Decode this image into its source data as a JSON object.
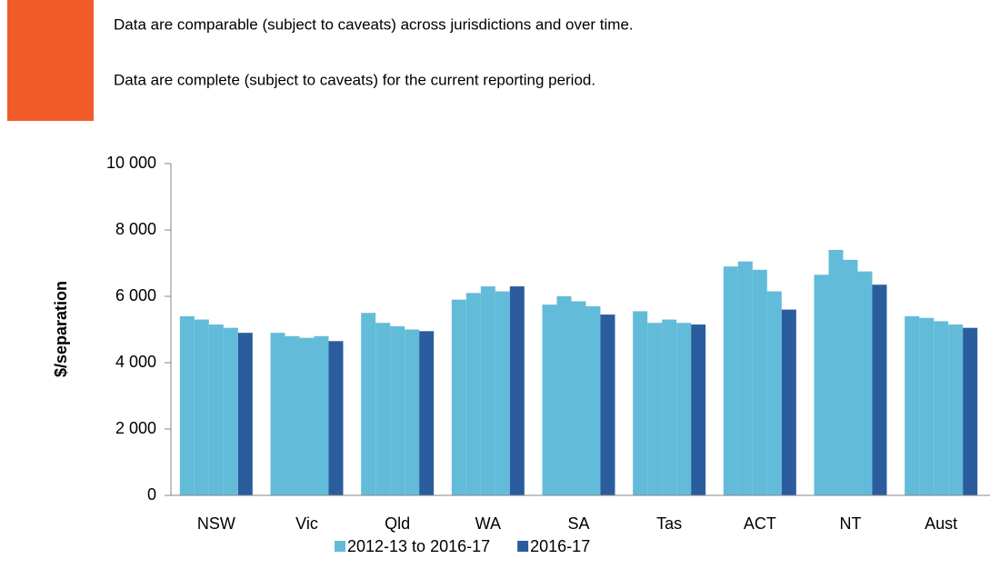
{
  "notes": [
    "Data are comparable (subject to caveats) across jurisdictions and over time.",
    "Data are complete (subject to caveats) for the current reporting period."
  ],
  "chart_data": {
    "type": "grouped_bar",
    "y_label": "$/separation",
    "categories": [
      "NSW",
      "Vic",
      "Qld",
      "WA",
      "SA",
      "Tas",
      "ACT",
      "NT",
      "Aust"
    ],
    "series": [
      {
        "name": "2012-13 to 2016-17",
        "color": "#62bcd9",
        "values": [
          [
            5400,
            5300,
            5150,
            5050
          ],
          [
            4900,
            4800,
            4750,
            4800
          ],
          [
            5500,
            5200,
            5100,
            5000
          ],
          [
            5900,
            6100,
            6300,
            6150
          ],
          [
            5750,
            6000,
            5850,
            5700
          ],
          [
            5550,
            5200,
            5300,
            5200
          ],
          [
            6900,
            7050,
            6800,
            6150
          ],
          [
            6650,
            7400,
            7100,
            6750
          ],
          [
            5400,
            5350,
            5250,
            5150
          ]
        ]
      },
      {
        "name": "2016-17",
        "color": "#2b5d9e",
        "values": [
          4900,
          4650,
          4950,
          6300,
          5450,
          5150,
          5600,
          6350,
          5050
        ]
      }
    ],
    "ylim": [
      0,
      10000
    ],
    "yticks": [
      0,
      {
        "value": 2000,
        "label": "2 000"
      },
      {
        "value": 4000,
        "label": "4 000"
      },
      {
        "value": 6000,
        "label": "6 000"
      },
      {
        "value": 8000,
        "label": "8 000"
      },
      {
        "value": 10000,
        "label": "10 000"
      }
    ],
    "grid": false
  }
}
